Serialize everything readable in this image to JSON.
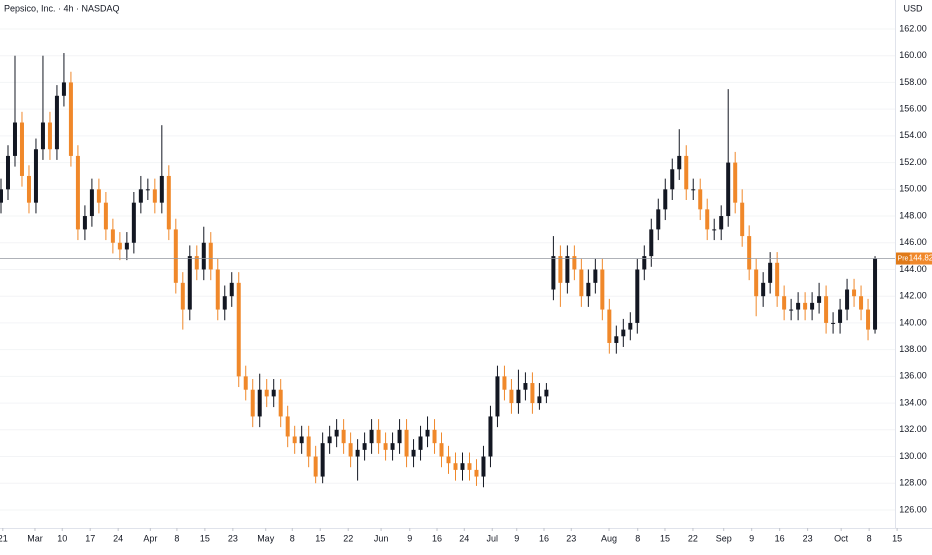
{
  "chart_data": {
    "type": "candlestick",
    "title": "Pepsico, Inc. · 4h · NASDAQ",
    "currency": "USD",
    "up_color": "#131722",
    "down_color": "#f0882a",
    "open": [
      149,
      150,
      152.5,
      155,
      151,
      149,
      153,
      155,
      153,
      157,
      158,
      152.5,
      147,
      148,
      150,
      149,
      147,
      146,
      145.5,
      146,
      149,
      150,
      150,
      149,
      151,
      147,
      143,
      141,
      145,
      144,
      146,
      144,
      141,
      142,
      143,
      136,
      135,
      133,
      135,
      134.5,
      135,
      133,
      131.5,
      131,
      131.5,
      130,
      128.5,
      131,
      131.5,
      132,
      131,
      130,
      130.5,
      131,
      132,
      131,
      130.5,
      131,
      132,
      130,
      130.5,
      131.5,
      132,
      131,
      130,
      129.5,
      129,
      129.5,
      129,
      128.5,
      130,
      133,
      136,
      135,
      134,
      135,
      135.5,
      134,
      134.5,
      142.5,
      145,
      143,
      145,
      144,
      142,
      143,
      144,
      141,
      138.5,
      139,
      139.5,
      140,
      144,
      145,
      147,
      148.5,
      150,
      151.5,
      152.5,
      150,
      150,
      148.5,
      147,
      147,
      148,
      152,
      149,
      146.5,
      144,
      142,
      143,
      144.5,
      142,
      141,
      141,
      141.5,
      141,
      141.5,
      142,
      140,
      140,
      141,
      142.5,
      142,
      141,
      139.5
    ],
    "high": [
      150.8,
      153.3,
      160,
      155.8,
      151.8,
      153.8,
      160,
      155.8,
      157.8,
      160.2,
      158.8,
      153.3,
      148.8,
      150.8,
      150.8,
      149.8,
      147.8,
      146.8,
      146.8,
      149.8,
      151,
      150.8,
      150.8,
      154.8,
      151.8,
      147.8,
      143.8,
      145.8,
      145.8,
      147.2,
      146.8,
      144.8,
      142.8,
      143.8,
      143.8,
      136.8,
      135.8,
      136.2,
      135.8,
      135.8,
      135.8,
      133.8,
      132.3,
      132.3,
      132.3,
      130.8,
      131.8,
      132.3,
      132.8,
      132.8,
      131.8,
      131.3,
      131.8,
      132.8,
      132.8,
      131.8,
      131.8,
      132.8,
      132.8,
      131.3,
      132.3,
      133,
      132.8,
      131.8,
      130.8,
      130.3,
      130.3,
      130.3,
      129.8,
      130.8,
      133.8,
      136.8,
      136.8,
      135.8,
      136.5,
      136.3,
      136.3,
      135.5,
      135.5,
      146.5,
      145.8,
      145.8,
      145.8,
      144.8,
      144,
      144.8,
      144.8,
      141.8,
      139.8,
      140.3,
      140.8,
      144.8,
      145.8,
      147.8,
      149.3,
      150.8,
      152.3,
      154.5,
      153.3,
      150.8,
      150.8,
      149.3,
      147.8,
      148.8,
      157.5,
      152.8,
      150,
      147.3,
      144.8,
      143.8,
      145.3,
      145.3,
      142.8,
      141.8,
      142.3,
      142.3,
      142.3,
      143,
      142.8,
      140.8,
      141.8,
      143.3,
      143.3,
      142.8,
      141.8,
      145
    ],
    "low": [
      148.2,
      149.2,
      151.7,
      150.2,
      148.2,
      148.2,
      152.2,
      152.2,
      152.2,
      156.2,
      151.7,
      146.2,
      146.2,
      147.2,
      148.2,
      146.2,
      145.2,
      144.7,
      144.7,
      145.2,
      148.2,
      149.2,
      148.2,
      148.2,
      146.2,
      142.2,
      139.5,
      140.2,
      143.2,
      143.2,
      143.2,
      140.2,
      140.2,
      141.2,
      135.2,
      134.2,
      132.2,
      132.2,
      133.7,
      133.7,
      132.2,
      130.7,
      130.2,
      130.2,
      129.2,
      128,
      128,
      130.2,
      130.7,
      130.2,
      129.2,
      128.2,
      129.7,
      130.2,
      130.2,
      129.7,
      129.7,
      130.2,
      129.2,
      129.2,
      129.7,
      130.7,
      130.2,
      129.2,
      128.7,
      128.2,
      128.2,
      128.2,
      127.8,
      127.7,
      129.2,
      132.2,
      134.2,
      133.2,
      133.2,
      134.2,
      133.2,
      133.5,
      134,
      141.7,
      141.2,
      142.2,
      143.2,
      141.2,
      141.2,
      142.2,
      140.2,
      137.7,
      137.7,
      138.2,
      138.7,
      139.2,
      143.2,
      144.2,
      146.2,
      147.7,
      149.2,
      150.7,
      149.2,
      149.2,
      147.7,
      146.2,
      146.2,
      146.2,
      147.2,
      148.2,
      145.7,
      143.2,
      140.5,
      141.2,
      142.2,
      141.2,
      140.2,
      140.2,
      140.2,
      140.2,
      140.2,
      140.7,
      139.2,
      139.2,
      139.2,
      140.2,
      141.2,
      140.2,
      138.7,
      139.2
    ],
    "close": [
      150,
      152.5,
      155,
      151,
      149,
      153,
      155,
      153,
      157,
      158,
      152.5,
      147,
      148,
      150,
      149,
      147,
      146,
      145.5,
      146,
      149,
      150,
      150,
      149,
      151,
      147,
      143,
      141,
      145,
      144,
      146,
      144,
      141,
      142,
      143,
      136,
      135,
      133,
      135,
      134.5,
      135,
      133,
      131.5,
      131,
      131.5,
      130,
      128.5,
      131,
      131.5,
      132,
      131,
      130,
      130.5,
      131,
      132,
      131,
      130.5,
      131,
      132,
      130,
      130.5,
      131.5,
      132,
      131,
      130,
      129.5,
      129,
      129.5,
      129,
      128.5,
      130,
      133,
      136,
      135,
      134,
      135,
      135.5,
      134,
      134.5,
      135,
      145,
      143,
      145,
      144,
      142,
      143,
      144,
      141,
      138.5,
      139,
      139.5,
      140,
      144,
      145,
      147,
      148.5,
      150,
      151.5,
      152.5,
      150,
      150,
      148.5,
      147,
      147,
      148,
      152,
      149,
      146.5,
      144,
      142,
      143,
      144.5,
      142,
      141,
      141,
      141.5,
      141,
      141.5,
      142,
      140,
      140,
      141,
      142.5,
      142,
      141,
      139.5,
      144.82
    ],
    "ylim": [
      124.65,
      164.17
    ],
    "yticks": [
      {
        "value": 126,
        "label": "126.00"
      },
      {
        "value": 128,
        "label": "128.00"
      },
      {
        "value": 130,
        "label": "130.00"
      },
      {
        "value": 132,
        "label": "132.00"
      },
      {
        "value": 134,
        "label": "134.00"
      },
      {
        "value": 136,
        "label": "136.00"
      },
      {
        "value": 138,
        "label": "138.00"
      },
      {
        "value": 140,
        "label": "140.00"
      },
      {
        "value": 142,
        "label": "142.00"
      },
      {
        "value": 144,
        "label": "144.00"
      },
      {
        "value": 146,
        "label": "146.00"
      },
      {
        "value": 148,
        "label": "148.00"
      },
      {
        "value": 150,
        "label": "150.00"
      },
      {
        "value": 152,
        "label": "152.00"
      },
      {
        "value": 154,
        "label": "154.00"
      },
      {
        "value": 156,
        "label": "156.00"
      },
      {
        "value": 158,
        "label": "158.00"
      },
      {
        "value": 160,
        "label": "160.00"
      },
      {
        "value": 162,
        "label": "162.00"
      }
    ],
    "xlim": [
      0,
      130
    ],
    "xticks": [
      {
        "value": 0.4,
        "label": "21"
      },
      {
        "value": 5,
        "label": "Mar"
      },
      {
        "value": 8.9,
        "label": "10"
      },
      {
        "value": 12.9,
        "label": "17"
      },
      {
        "value": 16.9,
        "label": "24"
      },
      {
        "value": 21.5,
        "label": "Apr"
      },
      {
        "value": 25.3,
        "label": "8"
      },
      {
        "value": 29.3,
        "label": "15"
      },
      {
        "value": 33.3,
        "label": "23"
      },
      {
        "value": 38,
        "label": "May"
      },
      {
        "value": 41.8,
        "label": "8"
      },
      {
        "value": 45.8,
        "label": "15"
      },
      {
        "value": 49.8,
        "label": "22"
      },
      {
        "value": 54.5,
        "label": "Jun"
      },
      {
        "value": 58.6,
        "label": "9"
      },
      {
        "value": 62.5,
        "label": "16"
      },
      {
        "value": 66.4,
        "label": "24"
      },
      {
        "value": 70.4,
        "label": "Jul"
      },
      {
        "value": 73.9,
        "label": "9"
      },
      {
        "value": 77.8,
        "label": "16"
      },
      {
        "value": 81.7,
        "label": "23"
      },
      {
        "value": 87.1,
        "label": "Aug"
      },
      {
        "value": 91.2,
        "label": "8"
      },
      {
        "value": 95.1,
        "label": "15"
      },
      {
        "value": 99.1,
        "label": "22"
      },
      {
        "value": 103.5,
        "label": "Sep"
      },
      {
        "value": 107.5,
        "label": "9"
      },
      {
        "value": 111.5,
        "label": "16"
      },
      {
        "value": 115.5,
        "label": "23"
      },
      {
        "value": 120.3,
        "label": "Oct"
      },
      {
        "value": 124.3,
        "label": "8"
      },
      {
        "value": 128.3,
        "label": "15"
      }
    ],
    "price_line": {
      "label": "Pre",
      "value": 144.82
    }
  }
}
